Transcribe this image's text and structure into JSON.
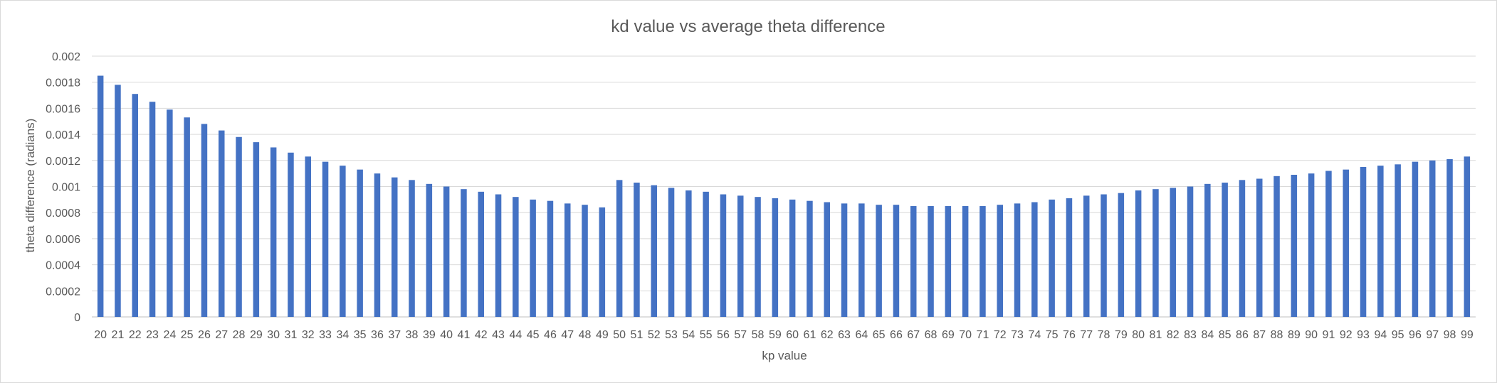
{
  "chart_data": {
    "type": "bar",
    "title": "kd value vs average theta difference",
    "xlabel": "kp value",
    "ylabel": "theta difference (radians)",
    "ylim": [
      0,
      0.002
    ],
    "y_ticks": [
      "0",
      "0.0002",
      "0.0004",
      "0.0006",
      "0.0008",
      "0.001",
      "0.0012",
      "0.0014",
      "0.0016",
      "0.0018",
      "0.002"
    ],
    "grid": true,
    "legend": "none",
    "bar_color": "#4472c4",
    "categories": [
      "20",
      "21",
      "22",
      "23",
      "24",
      "25",
      "26",
      "27",
      "28",
      "29",
      "30",
      "31",
      "32",
      "33",
      "34",
      "35",
      "36",
      "37",
      "38",
      "39",
      "40",
      "41",
      "42",
      "43",
      "44",
      "45",
      "46",
      "47",
      "48",
      "49",
      "50",
      "51",
      "52",
      "53",
      "54",
      "55",
      "56",
      "57",
      "58",
      "59",
      "60",
      "61",
      "62",
      "63",
      "64",
      "65",
      "66",
      "67",
      "68",
      "69",
      "70",
      "71",
      "72",
      "73",
      "74",
      "75",
      "76",
      "77",
      "78",
      "79",
      "80",
      "81",
      "82",
      "83",
      "84",
      "85",
      "86",
      "87",
      "88",
      "89",
      "90",
      "91",
      "92",
      "93",
      "94",
      "95",
      "96",
      "97",
      "98",
      "99"
    ],
    "values": [
      0.00185,
      0.00178,
      0.00171,
      0.00165,
      0.00159,
      0.00153,
      0.00148,
      0.00143,
      0.00138,
      0.00134,
      0.0013,
      0.00126,
      0.00123,
      0.00119,
      0.00116,
      0.00113,
      0.0011,
      0.00107,
      0.00105,
      0.00102,
      0.001,
      0.00098,
      0.00096,
      0.00094,
      0.00092,
      0.0009,
      0.00089,
      0.00087,
      0.00086,
      0.00084,
      0.00105,
      0.00103,
      0.00101,
      0.00099,
      0.00097,
      0.00096,
      0.00094,
      0.00093,
      0.00092,
      0.00091,
      0.0009,
      0.00089,
      0.00088,
      0.00087,
      0.00087,
      0.00086,
      0.00086,
      0.00085,
      0.00085,
      0.00085,
      0.00085,
      0.00085,
      0.00086,
      0.00087,
      0.00088,
      0.0009,
      0.00091,
      0.00093,
      0.00094,
      0.00095,
      0.00097,
      0.00098,
      0.00099,
      0.001,
      0.00102,
      0.00103,
      0.00105,
      0.00106,
      0.00108,
      0.00109,
      0.0011,
      0.00112,
      0.00113,
      0.00115,
      0.00116,
      0.00117,
      0.00119,
      0.0012,
      0.00121,
      0.00123
    ]
  }
}
